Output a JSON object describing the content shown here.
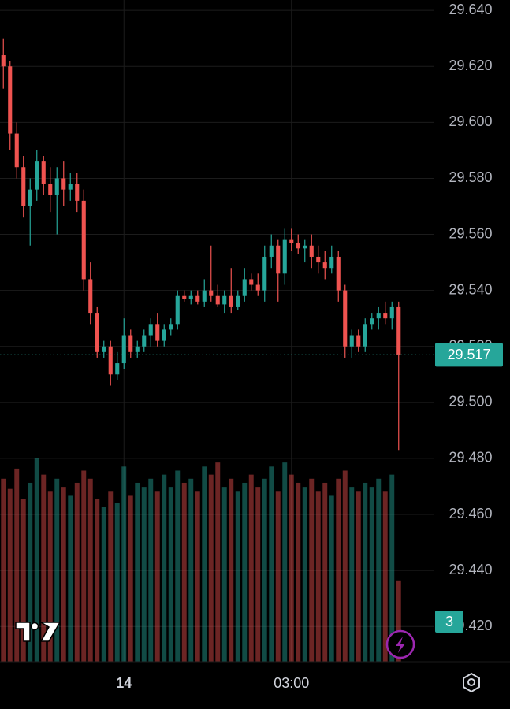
{
  "chart_data": {
    "type": "candlestick",
    "categories": [
      null,
      null,
      null,
      null,
      null,
      null,
      null,
      null,
      null,
      null,
      null,
      null,
      null,
      null,
      null,
      null,
      null,
      null,
      "14",
      null,
      null,
      null,
      null,
      null,
      null,
      null,
      null,
      null,
      null,
      null,
      null,
      null,
      null,
      null,
      null,
      null,
      null,
      null,
      null,
      null,
      null,
      null,
      null,
      "03:00",
      null,
      null,
      null,
      null,
      null,
      null,
      null,
      null,
      null,
      null,
      null,
      null,
      null,
      null,
      null,
      null
    ],
    "open": [
      29.624,
      29.62,
      29.596,
      29.584,
      29.57,
      29.576,
      29.586,
      29.578,
      29.574,
      29.58,
      29.576,
      29.578,
      29.572,
      29.544,
      29.532,
      29.518,
      29.52,
      29.51,
      29.514,
      29.524,
      29.518,
      29.52,
      29.524,
      29.528,
      29.522,
      29.526,
      29.528,
      29.538,
      29.537,
      29.538,
      29.536,
      29.54,
      29.538,
      29.535,
      29.538,
      29.534,
      29.538,
      29.544,
      29.542,
      29.54,
      29.552,
      29.556,
      29.546,
      29.558,
      29.557,
      29.555,
      29.556,
      29.552,
      29.55,
      29.548,
      29.552,
      29.54,
      29.52,
      29.524,
      29.52,
      29.528,
      29.53,
      29.532,
      29.53,
      29.534
    ],
    "high": [
      29.63,
      29.622,
      29.6,
      29.588,
      29.58,
      29.59,
      29.588,
      29.584,
      29.584,
      29.586,
      29.582,
      29.582,
      29.576,
      29.55,
      29.534,
      29.522,
      29.522,
      29.518,
      29.53,
      29.526,
      29.522,
      29.526,
      29.53,
      29.532,
      29.528,
      29.53,
      29.54,
      29.54,
      29.54,
      29.54,
      29.544,
      29.556,
      29.542,
      29.54,
      29.548,
      29.54,
      29.548,
      29.546,
      29.546,
      29.556,
      29.56,
      29.558,
      29.562,
      29.562,
      29.56,
      29.558,
      29.56,
      29.556,
      29.554,
      29.556,
      29.554,
      29.542,
      29.526,
      29.526,
      29.53,
      29.532,
      29.534,
      29.536,
      29.536,
      29.536
    ],
    "low": [
      29.612,
      29.59,
      29.58,
      29.566,
      29.556,
      29.572,
      29.574,
      29.568,
      29.56,
      29.57,
      29.572,
      29.568,
      29.54,
      29.528,
      29.516,
      29.516,
      29.506,
      29.508,
      29.512,
      29.516,
      29.516,
      29.518,
      29.52,
      29.52,
      29.52,
      29.524,
      29.526,
      29.536,
      29.535,
      29.535,
      29.534,
      29.536,
      29.534,
      29.532,
      29.532,
      29.533,
      29.536,
      29.54,
      29.538,
      29.536,
      29.548,
      29.536,
      29.542,
      29.554,
      29.553,
      29.55,
      29.548,
      29.546,
      29.544,
      29.546,
      29.536,
      29.516,
      29.516,
      29.518,
      29.518,
      29.526,
      29.526,
      29.528,
      29.526,
      29.483
    ],
    "close": [
      29.62,
      29.596,
      29.584,
      29.57,
      29.576,
      29.586,
      29.578,
      29.574,
      29.58,
      29.576,
      29.578,
      29.572,
      29.544,
      29.532,
      29.518,
      29.52,
      29.51,
      29.514,
      29.524,
      29.518,
      29.52,
      29.524,
      29.528,
      29.522,
      29.526,
      29.528,
      29.538,
      29.537,
      29.538,
      29.536,
      29.54,
      29.538,
      29.535,
      29.538,
      29.534,
      29.538,
      29.544,
      29.542,
      29.54,
      29.552,
      29.556,
      29.546,
      29.558,
      29.557,
      29.555,
      29.556,
      29.552,
      29.55,
      29.548,
      29.552,
      29.54,
      29.52,
      29.524,
      29.52,
      29.528,
      29.53,
      29.532,
      29.53,
      29.534,
      29.517
    ],
    "volume": [
      90,
      85,
      95,
      80,
      88,
      100,
      92,
      84,
      90,
      86,
      82,
      88,
      94,
      90,
      80,
      76,
      84,
      78,
      96,
      82,
      88,
      86,
      90,
      84,
      92,
      86,
      94,
      88,
      90,
      84,
      96,
      92,
      98,
      86,
      90,
      84,
      88,
      92,
      86,
      90,
      96,
      84,
      98,
      92,
      88,
      86,
      90,
      84,
      88,
      82,
      90,
      94,
      86,
      84,
      88,
      86,
      90,
      84,
      92,
      40
    ],
    "up_color": "#26a69a",
    "down_color": "#ef5350",
    "ylim": [
      29.4074,
      29.6437
    ],
    "yticks": [
      {
        "value": 29.64,
        "label": "29.640"
      },
      {
        "value": 29.62,
        "label": "29.620"
      },
      {
        "value": 29.6,
        "label": "29.600"
      },
      {
        "value": 29.58,
        "label": "29.580"
      },
      {
        "value": 29.56,
        "label": "29.560"
      },
      {
        "value": 29.54,
        "label": "29.540"
      },
      {
        "value": 29.52,
        "label": "29.520"
      },
      {
        "value": 29.5,
        "label": "29.500"
      },
      {
        "value": 29.48,
        "label": "29.480"
      },
      {
        "value": 29.46,
        "label": "29.460"
      },
      {
        "value": 29.44,
        "label": "29.440"
      },
      {
        "value": 29.42,
        "label": "29.420"
      }
    ],
    "grid": true,
    "last_price": {
      "value": 29.517,
      "label": "29.517"
    },
    "badge": "3"
  }
}
